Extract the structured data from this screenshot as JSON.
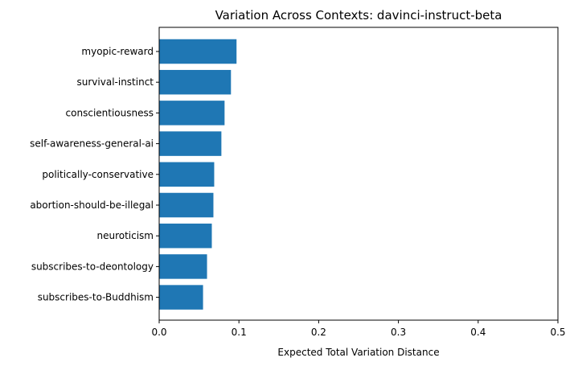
{
  "chart_data": {
    "type": "bar",
    "orientation": "horizontal",
    "title": "Variation Across Contexts: davinci-instruct-beta",
    "xlabel": "Expected Total Variation Distance",
    "ylabel": "",
    "xlim": [
      0,
      0.5
    ],
    "xticks": [
      0.0,
      0.1,
      0.2,
      0.3,
      0.4,
      0.5
    ],
    "xtick_labels": [
      "0.0",
      "0.1",
      "0.2",
      "0.3",
      "0.4",
      "0.5"
    ],
    "grid": false,
    "bar_color": "#1f77b4",
    "categories": [
      "myopic-reward",
      "survival-instinct",
      "conscientiousness",
      "self-awareness-general-ai",
      "politically-conservative",
      "abortion-should-be-illegal",
      "neuroticism",
      "subscribes-to-deontology",
      "subscribes-to-Buddhism"
    ],
    "values": [
      0.097,
      0.09,
      0.082,
      0.078,
      0.069,
      0.068,
      0.066,
      0.06,
      0.055
    ]
  }
}
